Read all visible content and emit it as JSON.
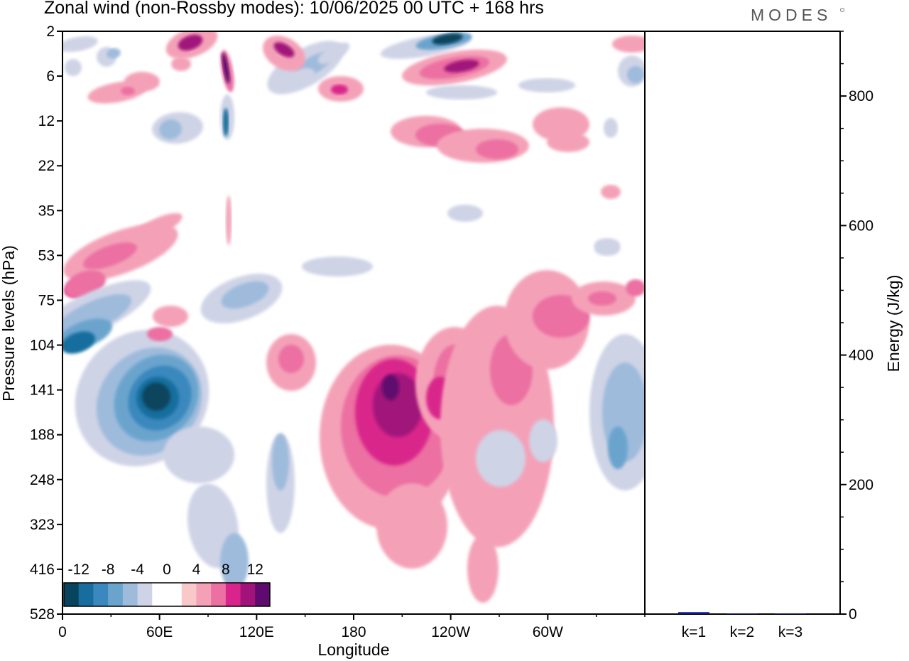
{
  "header": {
    "title": "Zonal wind (non-Rossby modes):  10/06/2025  00 UTC  + 168 hrs",
    "brand": "MODES"
  },
  "chart_data": [
    {
      "type": "heatmap",
      "title": "Zonal wind (non-Rossby modes):  10/06/2025  00 UTC  + 168 hrs",
      "xlabel": "Longitude",
      "ylabel": "Pressure levels (hPa)",
      "x_ticks": [
        "0",
        "60E",
        "120E",
        "180",
        "120W",
        "60W"
      ],
      "x_tick_values": [
        0,
        60,
        120,
        180,
        240,
        300
      ],
      "xlim": [
        0,
        360
      ],
      "y_ticks": [
        2,
        6,
        12,
        22,
        35,
        53,
        75,
        104,
        141,
        188,
        248,
        323,
        416,
        528
      ],
      "y_scale": "categorical pressure levels (top = 2 hPa, bottom = 528 hPa)",
      "colorbar": {
        "labels": [
          "-12",
          "-8",
          "-4",
          "0",
          "4",
          "8",
          "12"
        ],
        "label_values": [
          -12,
          -8,
          -4,
          0,
          4,
          8,
          12
        ],
        "levels": [
          -14,
          -12,
          -10,
          -8,
          -6,
          -4,
          -2,
          0,
          2,
          4,
          6,
          8,
          10,
          12,
          14
        ],
        "colors": [
          "#08445e",
          "#176e9e",
          "#3b88be",
          "#6aa4cd",
          "#9ebbdc",
          "#cfd3e6",
          "#ffffff",
          "#ffffff",
          "#f9c9c9",
          "#f4a1b8",
          "#ec70a1",
          "#d9258b",
          "#a1127a",
          "#5e0a6e"
        ],
        "placement": "bottom-left inside plot"
      },
      "features": [
        {
          "name": "lower-stratosphere easterly band",
          "sign": "negative",
          "lon": [
            0,
            70
          ],
          "level_hPa": [
            104,
            141
          ],
          "min_value": -14
        },
        {
          "name": "tropical easterly jet core",
          "sign": "negative",
          "lon": [
            40,
            90
          ],
          "level_hPa": [
            104,
            248
          ],
          "min_value": -14
        },
        {
          "name": "westerly maximum near dateline",
          "sign": "positive",
          "lon": [
            165,
            250
          ],
          "level_hPa": [
            104,
            323
          ],
          "max_value": 12
        },
        {
          "name": "upper stratosphere easterly",
          "sign": "negative",
          "lon": [
            200,
            260
          ],
          "level_hPa": [
            2,
            6
          ],
          "min_value": -14
        },
        {
          "name": "upper stratosphere westerly",
          "sign": "positive",
          "lon": [
            220,
            270
          ],
          "level_hPa": [
            4,
            8
          ],
          "max_value": 10
        },
        {
          "name": "eastern-hemisphere westerly band",
          "sign": "positive",
          "lon": [
            270,
            360
          ],
          "level_hPa": [
            53,
            141
          ],
          "max_value": 8
        },
        {
          "name": "eastern Pacific easterly",
          "sign": "negative",
          "lon": [
            330,
            360
          ],
          "level_hPa": [
            104,
            248
          ],
          "min_value": -6
        }
      ]
    },
    {
      "type": "bar",
      "categories": [
        "k=1",
        "k=2",
        "k=3"
      ],
      "values": [
        3,
        1,
        1
      ],
      "ylabel": "Energy (J/kg)",
      "ylim": [
        0,
        900
      ],
      "y_ticks": [
        0,
        200,
        400,
        600,
        800
      ],
      "bar_color": "#0a1a8a"
    }
  ]
}
